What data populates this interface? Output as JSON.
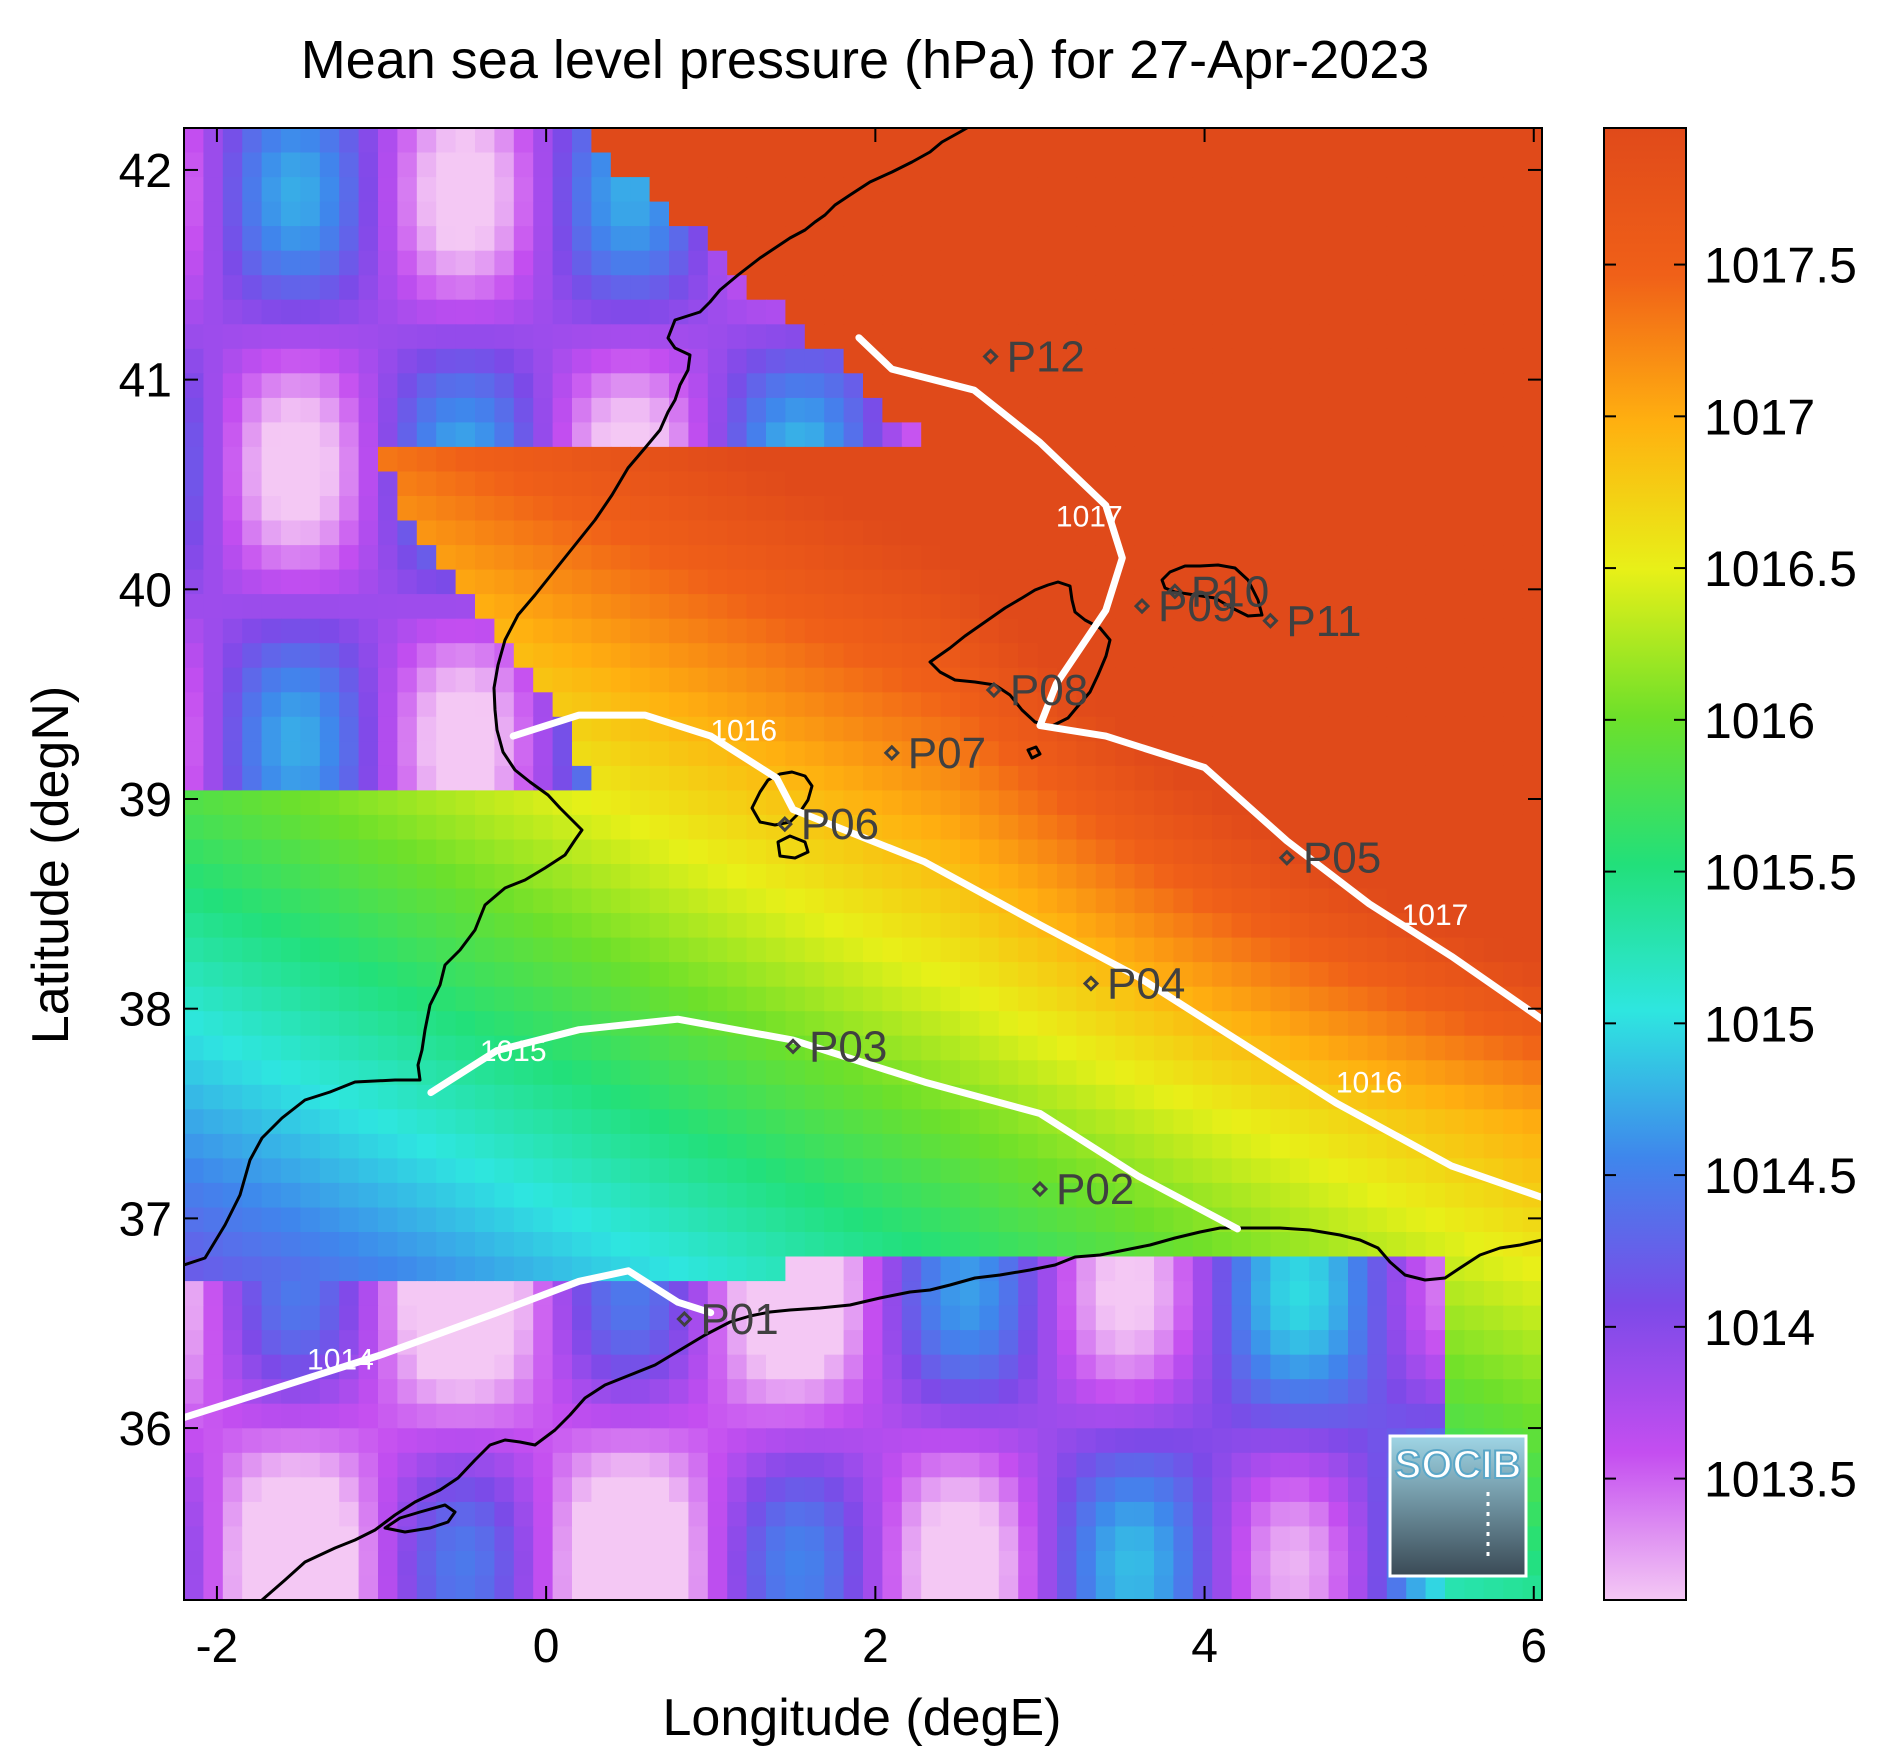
{
  "title": "Mean sea level pressure (hPa) for 27-Apr-2023",
  "x_axis": {
    "label": "Longitude (degE)",
    "range": [
      -2.2,
      6.05
    ],
    "ticks": [
      -2,
      0,
      2,
      4,
      6
    ],
    "tick_labels": [
      "-2",
      "0",
      "2",
      "4",
      "6"
    ]
  },
  "y_axis": {
    "label": "Latitude (degN)",
    "range": [
      35.18,
      42.2
    ],
    "ticks": [
      36,
      37,
      38,
      39,
      40,
      41,
      42
    ],
    "tick_labels": [
      "36",
      "37",
      "38",
      "39",
      "40",
      "41",
      "42"
    ]
  },
  "colorbar": {
    "range": [
      1013.1,
      1017.95
    ],
    "ticks": [
      1013.5,
      1014,
      1014.5,
      1015,
      1015.5,
      1016,
      1016.5,
      1017,
      1017.5
    ],
    "tick_labels": [
      "1013.5",
      "1014",
      "1014.5",
      "1015",
      "1015.5",
      "1016",
      "1016.5",
      "1017",
      "1017.5"
    ],
    "colormap": [
      "#f4c8f4",
      "#c44ef0",
      "#7c4ae8",
      "#3f86ec",
      "#2ee6e0",
      "#22e07a",
      "#6ee02a",
      "#e8f018",
      "#ffb010",
      "#f06018",
      "#e04a1a"
    ],
    "scale": "linear"
  },
  "chart_data": {
    "type": "heatmap",
    "title": "Mean sea level pressure (hPa) for 27-Apr-2023",
    "xlabel": "Longitude (degE)",
    "ylabel": "Latitude (degN)",
    "xlim": [
      -2.2,
      6.05
    ],
    "ylim": [
      35.18,
      42.2
    ],
    "value_range": [
      1013.1,
      1017.95
    ],
    "units": "hPa",
    "contours": [
      {
        "level": 1014,
        "label": "1014",
        "points": [
          [
            -2.2,
            36.05
          ],
          [
            -1.6,
            36.2
          ],
          [
            -1.0,
            36.35
          ],
          [
            -0.3,
            36.55
          ],
          [
            0.2,
            36.7
          ],
          [
            0.5,
            36.75
          ],
          [
            0.8,
            36.6
          ],
          [
            1.0,
            36.55
          ]
        ]
      },
      {
        "level": 1015,
        "label": "1015",
        "points": [
          [
            -0.7,
            37.6
          ],
          [
            -0.3,
            37.8
          ],
          [
            0.2,
            37.9
          ],
          [
            0.8,
            37.95
          ],
          [
            1.5,
            37.85
          ],
          [
            2.3,
            37.65
          ],
          [
            3.0,
            37.5
          ],
          [
            3.6,
            37.2
          ],
          [
            4.2,
            36.95
          ]
        ]
      },
      {
        "level": 1016,
        "label": "1016",
        "points": [
          [
            -0.2,
            39.3
          ],
          [
            0.2,
            39.4
          ],
          [
            0.6,
            39.4
          ],
          [
            1.0,
            39.3
          ],
          [
            1.4,
            39.1
          ],
          [
            1.5,
            38.95
          ],
          [
            2.3,
            38.7
          ],
          [
            3.0,
            38.4
          ],
          [
            3.6,
            38.15
          ],
          [
            4.2,
            37.85
          ],
          [
            4.8,
            37.55
          ],
          [
            5.5,
            37.25
          ],
          [
            6.05,
            37.1
          ]
        ]
      },
      {
        "level": 1017,
        "label": "1017",
        "points": [
          [
            1.9,
            41.2
          ],
          [
            2.1,
            41.05
          ],
          [
            2.6,
            40.95
          ],
          [
            3.0,
            40.7
          ],
          [
            3.4,
            40.4
          ],
          [
            3.5,
            40.15
          ],
          [
            3.4,
            39.9
          ],
          [
            3.1,
            39.55
          ],
          [
            3.0,
            39.35
          ],
          [
            3.4,
            39.3
          ],
          [
            4.0,
            39.15
          ],
          [
            4.5,
            38.8
          ],
          [
            5.0,
            38.5
          ],
          [
            5.5,
            38.25
          ],
          [
            6.05,
            37.95
          ]
        ]
      }
    ],
    "contour_label_positions": [
      {
        "label": "1014",
        "x": -1.25,
        "y": 36.28
      },
      {
        "label": "1015",
        "x": -0.2,
        "y": 37.75
      },
      {
        "label": "1016",
        "x": 1.2,
        "y": 39.28
      },
      {
        "label": "1016",
        "x": 5.0,
        "y": 37.6
      },
      {
        "label": "1017",
        "x": 3.3,
        "y": 40.3
      },
      {
        "label": "1017",
        "x": 5.4,
        "y": 38.4
      }
    ],
    "points": [
      {
        "name": "P01",
        "lon": 0.84,
        "lat": 36.52
      },
      {
        "name": "P02",
        "lon": 3.0,
        "lat": 37.14
      },
      {
        "name": "P03",
        "lon": 1.5,
        "lat": 37.82
      },
      {
        "name": "P04",
        "lon": 3.31,
        "lat": 38.12
      },
      {
        "name": "P05",
        "lon": 4.5,
        "lat": 38.72
      },
      {
        "name": "P06",
        "lon": 1.45,
        "lat": 38.88
      },
      {
        "name": "P07",
        "lon": 2.1,
        "lat": 39.22
      },
      {
        "name": "P08",
        "lon": 2.72,
        "lat": 39.52
      },
      {
        "name": "P09",
        "lon": 3.62,
        "lat": 39.92
      },
      {
        "name": "P10",
        "lon": 3.82,
        "lat": 39.99
      },
      {
        "name": "P11",
        "lon": 4.4,
        "lat": 39.85
      },
      {
        "name": "P12",
        "lon": 2.7,
        "lat": 41.11
      }
    ]
  },
  "logo": {
    "text": "SOCIB"
  }
}
